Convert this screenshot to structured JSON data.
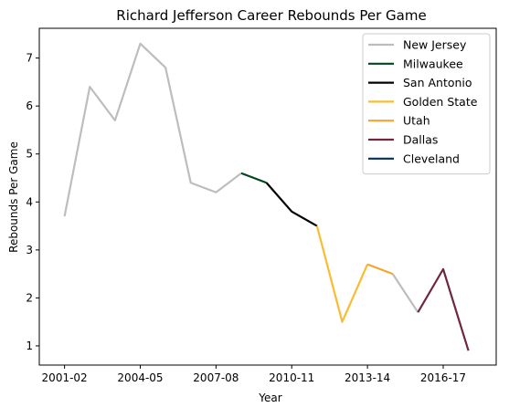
{
  "chart_data": {
    "type": "line",
    "title": "Richard Jefferson Career Rebounds Per Game",
    "xlabel": "Year",
    "ylabel": "Rebounds Per Game",
    "ylim": [
      0.6,
      7.62
    ],
    "grid": false,
    "legend_position": "top-right",
    "x_tick_labels": [
      "2001-02",
      "2004-05",
      "2007-08",
      "2010-11",
      "2013-14",
      "2016-17"
    ],
    "y_ticks": [
      1,
      2,
      3,
      4,
      5,
      6,
      7
    ],
    "series": [
      {
        "name": "New Jersey",
        "color": "#bdbdbd",
        "points": [
          {
            "x": "2001-02",
            "y": 3.7
          },
          {
            "x": "2002-03",
            "y": 6.4
          },
          {
            "x": "2003-04",
            "y": 5.7
          },
          {
            "x": "2004-05",
            "y": 7.3
          },
          {
            "x": "2005-06",
            "y": 6.8
          },
          {
            "x": "2006-07",
            "y": 4.4
          },
          {
            "x": "2007-08",
            "y": 4.2
          },
          {
            "x": "2008-09",
            "y": 4.6
          }
        ]
      },
      {
        "name": "Milwaukee",
        "color": "#00471b",
        "points": [
          {
            "x": "2008-09",
            "y": 4.6
          },
          {
            "x": "2009-10",
            "y": 4.4
          }
        ]
      },
      {
        "name": "San Antonio",
        "color": "#000000",
        "points": [
          {
            "x": "2009-10",
            "y": 4.4
          },
          {
            "x": "2010-11",
            "y": 3.8
          },
          {
            "x": "2011-12",
            "y": 3.5
          }
        ]
      },
      {
        "name": "Golden State",
        "color": "#f9bc32",
        "points": [
          {
            "x": "2011-12",
            "y": 3.5
          },
          {
            "x": "2012-13",
            "y": 1.5
          },
          {
            "x": "2013-14",
            "y": 2.7
          }
        ]
      },
      {
        "name": "Utah",
        "color": "#f5a52e",
        "points": [
          {
            "x": "2013-14",
            "y": 2.7
          },
          {
            "x": "2014-15",
            "y": 2.5
          }
        ]
      },
      {
        "name": "Dallas",
        "color": "#bdbdbd",
        "points": [
          {
            "x": "2014-15",
            "y": 2.5
          },
          {
            "x": "2015-16",
            "y": 1.7
          }
        ]
      },
      {
        "name": "Dallas",
        "color": "#6f2644",
        "points": [
          {
            "x": "2015-16",
            "y": 1.7
          },
          {
            "x": "2016-17",
            "y": 2.6
          },
          {
            "x": "2017-18",
            "y": 0.9
          }
        ]
      }
    ],
    "legend": [
      {
        "name": "New Jersey",
        "color": "#bdbdbd"
      },
      {
        "name": "Milwaukee",
        "color": "#00471b"
      },
      {
        "name": "San Antonio",
        "color": "#000000"
      },
      {
        "name": "Golden State",
        "color": "#f9bc32"
      },
      {
        "name": "Utah",
        "color": "#f5a52e"
      },
      {
        "name": "Dallas",
        "color": "#6f2644"
      },
      {
        "name": "Cleveland",
        "color": "#002d62"
      }
    ]
  }
}
